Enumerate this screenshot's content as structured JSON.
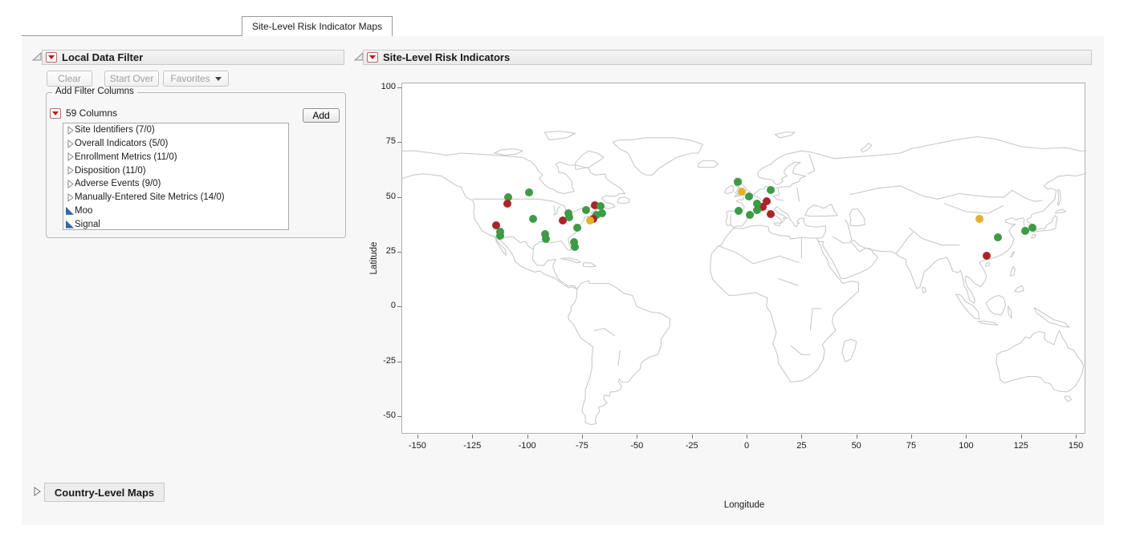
{
  "tab": {
    "label": "Site-Level Risk Indicator Maps"
  },
  "local_data_filter": {
    "title": "Local Data Filter",
    "clear_label": "Clear",
    "start_over_label": "Start Over",
    "favorites_label": "Favorites",
    "group_box_title": "Add Filter Columns",
    "columns_summary": "59 Columns",
    "add_label": "Add",
    "columns": [
      {
        "label": "Site Identifiers (7/0)",
        "kind": "group"
      },
      {
        "label": "Overall Indicators (5/0)",
        "kind": "group"
      },
      {
        "label": "Enrollment Metrics (11/0)",
        "kind": "group"
      },
      {
        "label": "Disposition (11/0)",
        "kind": "group"
      },
      {
        "label": "Adverse Events (9/0)",
        "kind": "group"
      },
      {
        "label": "Manually-Entered Site Metrics (14/0)",
        "kind": "group"
      },
      {
        "label": "Moo",
        "kind": "continuous"
      },
      {
        "label": "Signal",
        "kind": "continuous"
      }
    ]
  },
  "site_map_panel": {
    "title": "Site-Level Risk Indicators"
  },
  "country_maps_panel": {
    "title": "Country-Level Maps"
  },
  "chart_data": {
    "type": "scatter",
    "title": "Site-Level Risk Indicators",
    "xlabel": "Longitude",
    "ylabel": "Latitude",
    "xlim": [
      -157,
      155
    ],
    "ylim": [
      -59,
      102
    ],
    "x_ticks": [
      -150,
      -125,
      -100,
      -75,
      -50,
      -25,
      0,
      25,
      50,
      75,
      100,
      125,
      150
    ],
    "y_ticks": [
      100,
      75,
      50,
      25,
      0,
      -25,
      -50
    ],
    "grid": false,
    "legend_position": "none",
    "risk_colors": {
      "green": "#3e9b45",
      "yellow": "#e2b22b",
      "red": "#a8262a"
    },
    "map_outline_color": "#c9c9c9",
    "points": [
      {
        "lon": -108.7,
        "lat": 49.8,
        "risk": "green"
      },
      {
        "lon": -109.1,
        "lat": 47.0,
        "risk": "red"
      },
      {
        "lon": -99.2,
        "lat": 51.9,
        "risk": "green"
      },
      {
        "lon": -114.2,
        "lat": 37.2,
        "risk": "red"
      },
      {
        "lon": -112.4,
        "lat": 34.0,
        "risk": "green"
      },
      {
        "lon": -112.2,
        "lat": 32.3,
        "risk": "green"
      },
      {
        "lon": -97.4,
        "lat": 39.8,
        "risk": "green"
      },
      {
        "lon": -83.8,
        "lat": 39.2,
        "risk": "red"
      },
      {
        "lon": -81.1,
        "lat": 42.5,
        "risk": "green"
      },
      {
        "lon": -80.7,
        "lat": 40.7,
        "risk": "green"
      },
      {
        "lon": -91.9,
        "lat": 33.1,
        "risk": "green"
      },
      {
        "lon": -91.4,
        "lat": 30.7,
        "risk": "green"
      },
      {
        "lon": -77.1,
        "lat": 35.8,
        "risk": "green"
      },
      {
        "lon": -78.5,
        "lat": 29.3,
        "risk": "green"
      },
      {
        "lon": -78.3,
        "lat": 27.0,
        "risk": "green"
      },
      {
        "lon": -73.3,
        "lat": 44.1,
        "risk": "green"
      },
      {
        "lon": -69.0,
        "lat": 46.1,
        "risk": "red"
      },
      {
        "lon": -66.4,
        "lat": 46.0,
        "risk": "green"
      },
      {
        "lon": -68.4,
        "lat": 41.9,
        "risk": "green"
      },
      {
        "lon": -65.7,
        "lat": 42.7,
        "risk": "green"
      },
      {
        "lon": -70.0,
        "lat": 40.1,
        "risk": "red"
      },
      {
        "lon": -71.5,
        "lat": 39.4,
        "risk": "yellow"
      },
      {
        "lon": -4.1,
        "lat": 56.8,
        "risk": "green"
      },
      {
        "lon": -2.1,
        "lat": 52.5,
        "risk": "yellow"
      },
      {
        "lon": 1.0,
        "lat": 50.1,
        "risk": "green"
      },
      {
        "lon": 11.1,
        "lat": 53.1,
        "risk": "green"
      },
      {
        "lon": 9.1,
        "lat": 48.2,
        "risk": "red"
      },
      {
        "lon": 7.4,
        "lat": 45.5,
        "risk": "red"
      },
      {
        "lon": 4.6,
        "lat": 46.8,
        "risk": "green"
      },
      {
        "lon": -3.5,
        "lat": 43.7,
        "risk": "green"
      },
      {
        "lon": 1.6,
        "lat": 41.9,
        "risk": "green"
      },
      {
        "lon": 4.6,
        "lat": 44.1,
        "risk": "green"
      },
      {
        "lon": 11.0,
        "lat": 42.2,
        "risk": "red"
      },
      {
        "lon": 106.2,
        "lat": 40.0,
        "risk": "yellow"
      },
      {
        "lon": 114.6,
        "lat": 31.5,
        "risk": "green"
      },
      {
        "lon": 109.3,
        "lat": 23.0,
        "risk": "red"
      },
      {
        "lon": 126.8,
        "lat": 34.6,
        "risk": "green"
      },
      {
        "lon": 130.2,
        "lat": 36.0,
        "risk": "green"
      }
    ]
  }
}
